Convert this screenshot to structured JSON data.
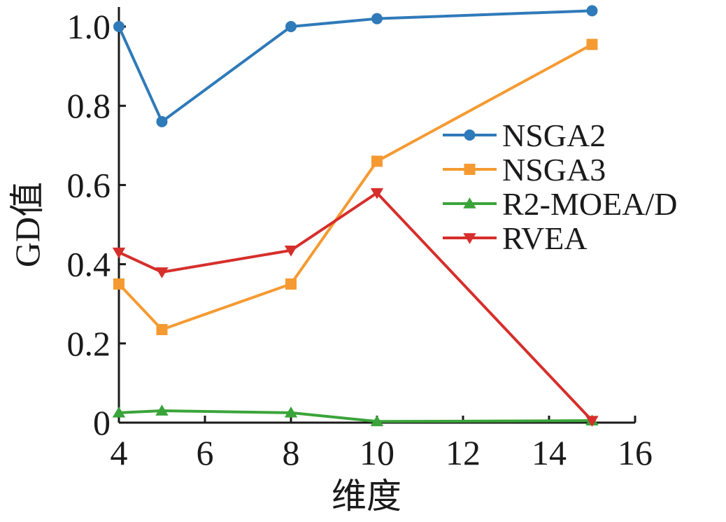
{
  "chart_data": {
    "type": "line",
    "title": "",
    "xlabel": "维度",
    "ylabel": "GD值",
    "xlim": [
      4,
      16
    ],
    "ylim": [
      0,
      1.0
    ],
    "x_ticks": [
      4,
      6,
      8,
      10,
      12,
      14,
      16
    ],
    "x_tick_labels": [
      "4",
      "6",
      "8",
      "10",
      "12",
      "14",
      "16"
    ],
    "y_ticks": [
      0,
      0.2,
      0.4,
      0.6,
      0.8,
      1.0
    ],
    "y_tick_labels": [
      "0",
      "0.2",
      "0.4",
      "0.6",
      "0.8",
      "1.0"
    ],
    "grid": false,
    "legend_position": "right",
    "x": [
      4,
      5,
      8,
      10,
      15
    ],
    "series": [
      {
        "name": "NSGA2",
        "values": [
          1.0,
          0.76,
          1.0,
          1.02,
          1.04
        ],
        "color": "#2f7ab9",
        "marker": "circle"
      },
      {
        "name": "NSGA3",
        "values": [
          0.35,
          0.235,
          0.35,
          0.66,
          0.955
        ],
        "color": "#f59a31",
        "marker": "square"
      },
      {
        "name": "R2-MOEA/D",
        "values": [
          0.025,
          0.03,
          0.025,
          0.003,
          0.005
        ],
        "color": "#3aa43a",
        "marker": "triangle-up"
      },
      {
        "name": "RVEA",
        "values": [
          0.43,
          0.38,
          0.435,
          0.58,
          0.005
        ],
        "color": "#d62e2b",
        "marker": "triangle-down"
      }
    ]
  }
}
